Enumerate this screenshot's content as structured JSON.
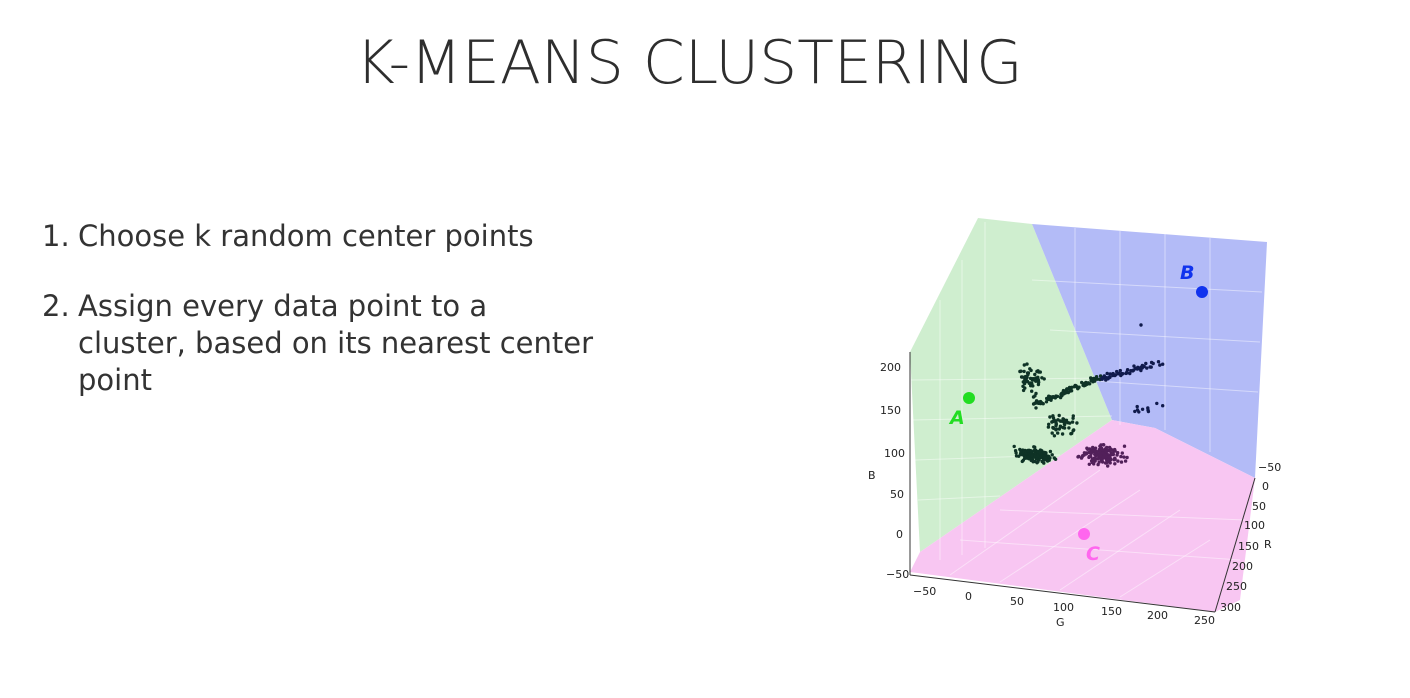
{
  "slide": {
    "title": "K-MEANS CLUSTERING",
    "steps": [
      {
        "number": "1.",
        "text": "Choose k random center points"
      },
      {
        "number": "2.",
        "text": "Assign every data point to a cluster, based on its nearest center point"
      }
    ]
  },
  "chart_data": {
    "type": "scatter",
    "dimensions": 3,
    "axes": {
      "x": {
        "label": "G",
        "ticks": [
          "−50",
          "0",
          "50",
          "100",
          "150",
          "200",
          "250"
        ]
      },
      "y": {
        "label": "R",
        "ticks": [
          "−50",
          "0",
          "50",
          "100",
          "150",
          "200",
          "250",
          "300"
        ]
      },
      "z": {
        "label": "B",
        "ticks": [
          "200",
          "150",
          "100",
          "50",
          "0",
          "−50"
        ]
      }
    },
    "centers": [
      {
        "label": "A",
        "color": "#22dd22"
      },
      {
        "label": "B",
        "color": "#1133ee"
      },
      {
        "label": "C",
        "color": "#ff66ee"
      }
    ],
    "regions": [
      {
        "cluster": "A",
        "color": "#cfeecf"
      },
      {
        "cluster": "B",
        "color": "#b3bbf7"
      },
      {
        "cluster": "C",
        "color": "#f8c6f2"
      }
    ],
    "point_colors": {
      "A": "#0f3326",
      "B": "#101a4c",
      "C": "#52205a"
    },
    "grid": true
  }
}
